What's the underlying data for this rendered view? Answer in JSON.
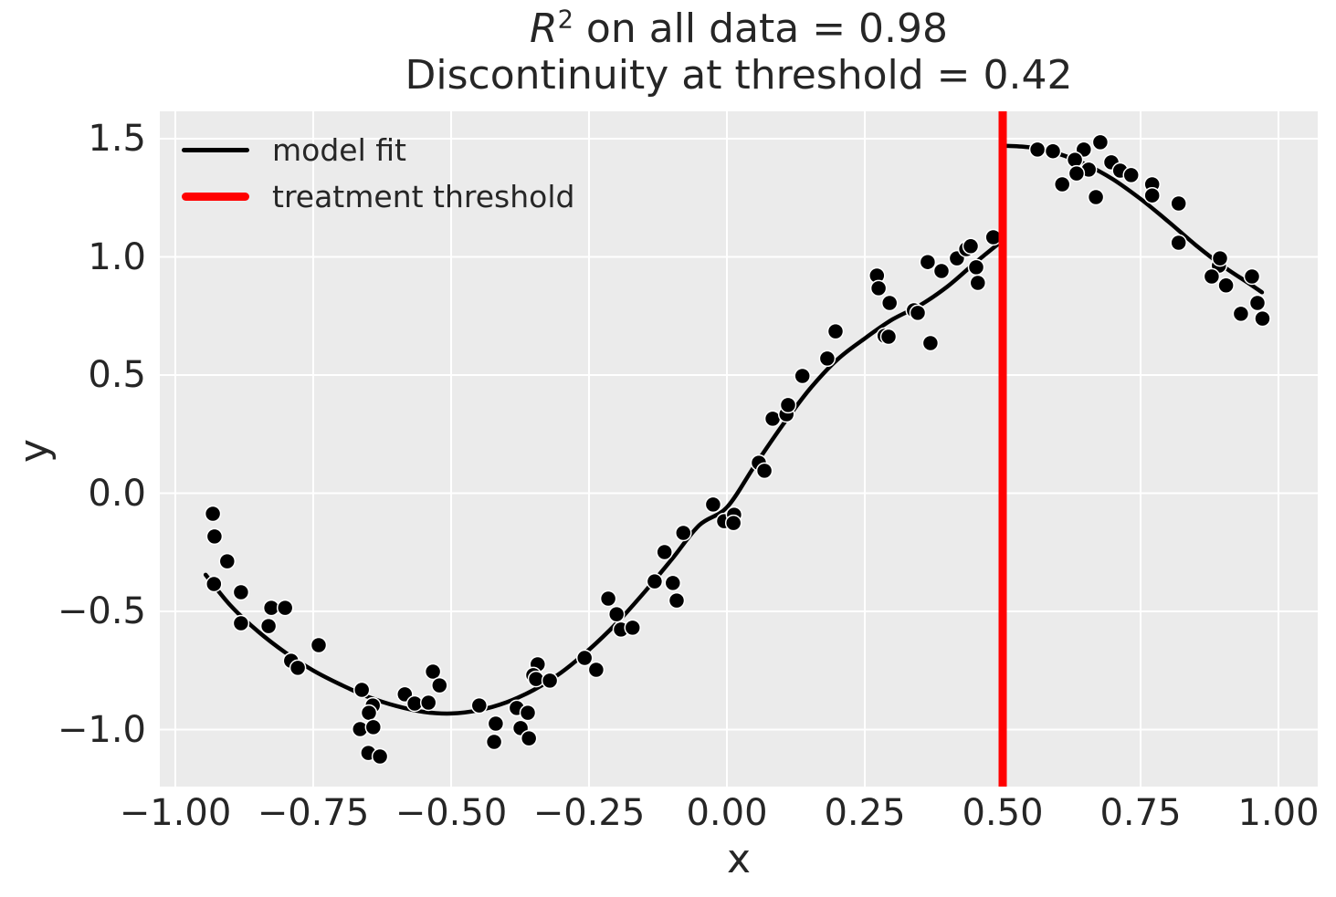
{
  "chart_data": {
    "type": "scatter",
    "title": {
      "r_symbol": "R",
      "r_exponent": "2",
      "line1_rest": " on all data = 0.98",
      "line2": "Discontinuity at threshold = 0.42"
    },
    "r_squared": 0.98,
    "xlabel": "x",
    "ylabel": "y",
    "xlim": [
      -1.03,
      1.07
    ],
    "ylim": [
      -1.24,
      1.62
    ],
    "grid": true,
    "background_color": "#ebebeb",
    "grid_color": "#ffffff",
    "text_color": "#262626",
    "x_ticks": {
      "values": [
        -1.0,
        -0.75,
        -0.5,
        -0.25,
        0.0,
        0.25,
        0.5,
        0.75,
        1.0
      ],
      "labels": [
        "−1.00",
        "−0.75",
        "−0.50",
        "−0.25",
        "0.00",
        "0.25",
        "0.50",
        "0.75",
        "1.00"
      ]
    },
    "y_ticks": {
      "values": [
        1.5,
        1.0,
        0.5,
        0.0,
        -0.5,
        -1.0
      ],
      "labels": [
        "1.5",
        "1.0",
        "0.5",
        "0.0",
        "−0.5",
        "−1.0"
      ]
    },
    "legend": {
      "position": "upper left",
      "frame": false,
      "entries": [
        {
          "label": "model fit",
          "color": "#000000",
          "line_width": 4.5
        },
        {
          "label": "treatment threshold",
          "color": "#ff0000",
          "line_width": 9
        }
      ]
    },
    "threshold": {
      "x": 0.5,
      "color": "#ff0000",
      "discontinuity": 0.42
    },
    "model_fit": {
      "color": "#000000",
      "line_width": 4.5,
      "segments": [
        [
          [
            -0.945,
            -0.345
          ],
          [
            -0.9,
            -0.475
          ],
          [
            -0.85,
            -0.585
          ],
          [
            -0.8,
            -0.675
          ],
          [
            -0.75,
            -0.75
          ],
          [
            -0.7,
            -0.81
          ],
          [
            -0.65,
            -0.862
          ],
          [
            -0.6,
            -0.9
          ],
          [
            -0.55,
            -0.925
          ],
          [
            -0.5,
            -0.932
          ],
          [
            -0.45,
            -0.918
          ],
          [
            -0.4,
            -0.885
          ],
          [
            -0.35,
            -0.832
          ],
          [
            -0.3,
            -0.758
          ],
          [
            -0.25,
            -0.662
          ],
          [
            -0.2,
            -0.55
          ],
          [
            -0.15,
            -0.42
          ],
          [
            -0.1,
            -0.28
          ],
          [
            -0.05,
            -0.135
          ],
          [
            0.0,
            -0.06
          ],
          [
            0.05,
            0.115
          ],
          [
            0.1,
            0.285
          ],
          [
            0.15,
            0.44
          ],
          [
            0.2,
            0.565
          ],
          [
            0.25,
            0.655
          ],
          [
            0.3,
            0.735
          ],
          [
            0.35,
            0.795
          ],
          [
            0.4,
            0.875
          ],
          [
            0.45,
            0.975
          ],
          [
            0.5,
            1.07
          ]
        ],
        [
          [
            0.505,
            1.47
          ],
          [
            0.55,
            1.463
          ],
          [
            0.6,
            1.437
          ],
          [
            0.65,
            1.392
          ],
          [
            0.7,
            1.328
          ],
          [
            0.75,
            1.245
          ],
          [
            0.8,
            1.15
          ],
          [
            0.85,
            1.05
          ],
          [
            0.9,
            0.96
          ],
          [
            0.945,
            0.89
          ],
          [
            0.97,
            0.85
          ]
        ]
      ]
    },
    "scatter": {
      "color": "#000000",
      "edge_color": "#ffffff",
      "marker_radius": 8.5,
      "points": [
        [
          -0.932,
          -0.087
        ],
        [
          -0.929,
          -0.183
        ],
        [
          -0.906,
          -0.288
        ],
        [
          -0.93,
          -0.384
        ],
        [
          -0.881,
          -0.419
        ],
        [
          -0.881,
          -0.55
        ],
        [
          -0.826,
          -0.485
        ],
        [
          -0.801,
          -0.485
        ],
        [
          -0.831,
          -0.562
        ],
        [
          -0.74,
          -0.643
        ],
        [
          -0.79,
          -0.709
        ],
        [
          -0.778,
          -0.739
        ],
        [
          -0.662,
          -0.832
        ],
        [
          -0.642,
          -0.898
        ],
        [
          -0.649,
          -0.929
        ],
        [
          -0.665,
          -0.998
        ],
        [
          -0.641,
          -0.99
        ],
        [
          -0.65,
          -1.099
        ],
        [
          -0.629,
          -1.114
        ],
        [
          -0.584,
          -0.851
        ],
        [
          -0.566,
          -0.89
        ],
        [
          -0.541,
          -0.886
        ],
        [
          -0.533,
          -0.755
        ],
        [
          -0.521,
          -0.813
        ],
        [
          -0.449,
          -0.898
        ],
        [
          -0.419,
          -0.975
        ],
        [
          -0.422,
          -1.052
        ],
        [
          -0.381,
          -0.909
        ],
        [
          -0.374,
          -0.994
        ],
        [
          -0.359,
          -1.037
        ],
        [
          -0.361,
          -0.929
        ],
        [
          -0.343,
          -0.724
        ],
        [
          -0.351,
          -0.77
        ],
        [
          -0.346,
          -0.786
        ],
        [
          -0.321,
          -0.793
        ],
        [
          -0.258,
          -0.697
        ],
        [
          -0.237,
          -0.747
        ],
        [
          -0.215,
          -0.446
        ],
        [
          -0.2,
          -0.512
        ],
        [
          -0.192,
          -0.577
        ],
        [
          -0.171,
          -0.569
        ],
        [
          -0.131,
          -0.373
        ],
        [
          -0.113,
          -0.249
        ],
        [
          -0.098,
          -0.38
        ],
        [
          -0.091,
          -0.454
        ],
        [
          -0.079,
          -0.168
        ],
        [
          -0.025,
          -0.048
        ],
        [
          -0.005,
          -0.118
        ],
        [
          0.013,
          -0.091
        ],
        [
          0.012,
          -0.126
        ],
        [
          0.058,
          0.129
        ],
        [
          0.068,
          0.095
        ],
        [
          0.083,
          0.315
        ],
        [
          0.108,
          0.334
        ],
        [
          0.111,
          0.373
        ],
        [
          0.137,
          0.496
        ],
        [
          0.182,
          0.57
        ],
        [
          0.197,
          0.685
        ],
        [
          0.272,
          0.921
        ],
        [
          0.275,
          0.867
        ],
        [
          0.295,
          0.805
        ],
        [
          0.286,
          0.666
        ],
        [
          0.293,
          0.662
        ],
        [
          0.339,
          0.774
        ],
        [
          0.346,
          0.763
        ],
        [
          0.364,
          0.978
        ],
        [
          0.389,
          0.94
        ],
        [
          0.369,
          0.635
        ],
        [
          0.417,
          0.994
        ],
        [
          0.434,
          1.033
        ],
        [
          0.442,
          1.045
        ],
        [
          0.452,
          0.956
        ],
        [
          0.455,
          0.89
        ],
        [
          0.483,
          1.083
        ],
        [
          0.563,
          1.454
        ],
        [
          0.591,
          1.447
        ],
        [
          0.647,
          1.454
        ],
        [
          0.677,
          1.485
        ],
        [
          0.631,
          1.411
        ],
        [
          0.656,
          1.369
        ],
        [
          0.634,
          1.353
        ],
        [
          0.697,
          1.4
        ],
        [
          0.713,
          1.365
        ],
        [
          0.733,
          1.346
        ],
        [
          0.608,
          1.307
        ],
        [
          0.771,
          1.307
        ],
        [
          0.771,
          1.26
        ],
        [
          0.669,
          1.253
        ],
        [
          0.819,
          1.226
        ],
        [
          0.819,
          1.06
        ],
        [
          0.892,
          0.963
        ],
        [
          0.894,
          0.994
        ],
        [
          0.879,
          0.917
        ],
        [
          0.905,
          0.879
        ],
        [
          0.952,
          0.917
        ],
        [
          0.962,
          0.805
        ],
        [
          0.932,
          0.759
        ],
        [
          0.971,
          0.739
        ]
      ]
    }
  }
}
